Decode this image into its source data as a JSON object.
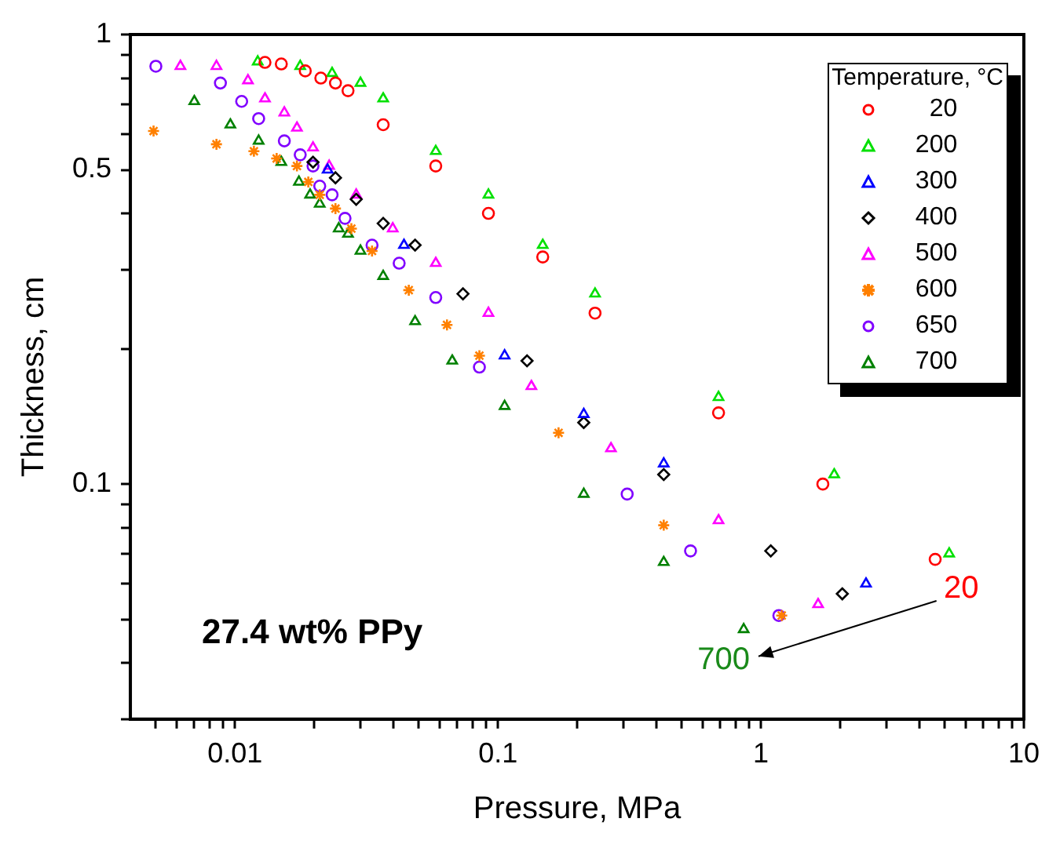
{
  "chart_data": {
    "type": "scatter",
    "xlabel": "Pressure, MPa",
    "ylabel": "Thickness, cm",
    "legend_title": "Temperature, °C",
    "legend": "top right",
    "log": "xy",
    "grid": false,
    "xlim": [
      0.004,
      10
    ],
    "ylim": [
      0.03,
      1
    ],
    "xticks": [
      {
        "value": 0.005,
        "label": null
      },
      {
        "value": 0.006,
        "label": null
      },
      {
        "value": 0.007,
        "label": null
      },
      {
        "value": 0.008,
        "label": null
      },
      {
        "value": 0.009,
        "label": null
      },
      0.01,
      {
        "value": 0.02,
        "label": null
      },
      {
        "value": 0.03,
        "label": null
      },
      {
        "value": 0.04,
        "label": null
      },
      {
        "value": 0.05,
        "label": null
      },
      {
        "value": 0.06,
        "label": null
      },
      {
        "value": 0.07,
        "label": null
      },
      {
        "value": 0.08,
        "label": null
      },
      {
        "value": 0.09,
        "label": null
      },
      0.1,
      {
        "value": 0.2,
        "label": null
      },
      {
        "value": 0.3,
        "label": null
      },
      {
        "value": 0.4,
        "label": null
      },
      {
        "value": 0.5,
        "label": null
      },
      {
        "value": 0.6,
        "label": null
      },
      {
        "value": 0.7,
        "label": null
      },
      {
        "value": 0.8,
        "label": null
      },
      {
        "value": 0.9,
        "label": null
      },
      1,
      {
        "value": 2,
        "label": null
      },
      {
        "value": 3,
        "label": null
      },
      {
        "value": 4,
        "label": null
      },
      {
        "value": 5,
        "label": null
      },
      {
        "value": 6,
        "label": null
      },
      {
        "value": 7,
        "label": null
      },
      {
        "value": 8,
        "label": null
      },
      {
        "value": 9,
        "label": null
      },
      10
    ],
    "yticks": [
      {
        "value": 0.03,
        "label": null
      },
      {
        "value": 0.04,
        "label": null
      },
      {
        "value": 0.05,
        "label": null
      },
      {
        "value": 0.06,
        "label": null
      },
      {
        "value": 0.07,
        "label": null
      },
      {
        "value": 0.08,
        "label": null
      },
      {
        "value": 0.09,
        "label": null
      },
      0.1,
      {
        "value": 0.2,
        "label": null
      },
      {
        "value": 0.3,
        "label": null
      },
      {
        "value": 0.4,
        "label": null
      },
      0.5,
      {
        "value": 0.6,
        "label": null
      },
      {
        "value": 0.7,
        "label": null
      },
      {
        "value": 0.8,
        "label": null
      },
      {
        "value": 0.9,
        "label": null
      },
      1
    ],
    "annotations": [
      "27.4 wt% PPy",
      "20",
      "700"
    ],
    "series": [
      {
        "name": "20",
        "color": "#ff0000",
        "marker": "circle",
        "x": [
          0.013,
          0.015,
          0.0185,
          0.0212,
          0.0241,
          0.0269,
          0.0366,
          0.058,
          0.092,
          0.148,
          0.234,
          0.69,
          1.72,
          4.6
        ],
        "values": [
          0.867,
          0.86,
          0.83,
          0.8,
          0.78,
          0.75,
          0.63,
          0.51,
          0.4,
          0.32,
          0.24,
          0.144,
          0.1,
          0.068
        ]
      },
      {
        "name": "200",
        "color": "#00e000",
        "marker": "triangle",
        "x": [
          0.0122,
          0.0177,
          0.0234,
          0.03,
          0.0366,
          0.058,
          0.092,
          0.148,
          0.234,
          0.69,
          1.9,
          5.2
        ],
        "values": [
          0.87,
          0.85,
          0.82,
          0.78,
          0.72,
          0.55,
          0.44,
          0.34,
          0.265,
          0.156,
          0.105,
          0.07
        ]
      },
      {
        "name": "300",
        "color": "#0000ff",
        "marker": "triangle",
        "x": [
          0.0225,
          0.0439,
          0.106,
          0.212,
          0.427,
          2.51
        ],
        "values": [
          0.5,
          0.34,
          0.193,
          0.143,
          0.111,
          0.06
        ]
      },
      {
        "name": "400",
        "color": "#000000",
        "marker": "diamond",
        "x": [
          0.0198,
          0.0241,
          0.0289,
          0.0366,
          0.0484,
          0.0736,
          0.129,
          0.212,
          0.427,
          1.09,
          2.04
        ],
        "values": [
          0.52,
          0.48,
          0.43,
          0.38,
          0.34,
          0.265,
          0.188,
          0.137,
          0.105,
          0.071,
          0.057
        ]
      },
      {
        "name": "500",
        "color": "#ff00ff",
        "marker": "triangle",
        "x": [
          0.0062,
          0.0085,
          0.0112,
          0.013,
          0.0154,
          0.0172,
          0.0198,
          0.0228,
          0.0289,
          0.0398,
          0.058,
          0.092,
          0.134,
          0.269,
          0.69,
          1.65
        ],
        "values": [
          0.85,
          0.85,
          0.79,
          0.72,
          0.67,
          0.62,
          0.56,
          0.51,
          0.44,
          0.37,
          0.31,
          0.24,
          0.165,
          0.12,
          0.083,
          0.054
        ]
      },
      {
        "name": "600",
        "color": "#ff8000",
        "marker": "cross",
        "x": [
          0.0049,
          0.0085,
          0.0118,
          0.0144,
          0.0172,
          0.019,
          0.021,
          0.0241,
          0.0277,
          0.0332,
          0.0458,
          0.064,
          0.085,
          0.17,
          0.427,
          1.2
        ],
        "values": [
          0.61,
          0.57,
          0.55,
          0.53,
          0.51,
          0.47,
          0.44,
          0.41,
          0.37,
          0.33,
          0.27,
          0.226,
          0.193,
          0.13,
          0.081,
          0.051
        ]
      },
      {
        "name": "650",
        "color": "#8000ff",
        "marker": "circle",
        "x": [
          0.005,
          0.0088,
          0.0106,
          0.0123,
          0.0154,
          0.0177,
          0.0198,
          0.021,
          0.0234,
          0.0262,
          0.0332,
          0.0421,
          0.058,
          0.085,
          0.31,
          0.54,
          1.17
        ],
        "values": [
          0.85,
          0.78,
          0.71,
          0.65,
          0.58,
          0.54,
          0.51,
          0.46,
          0.44,
          0.39,
          0.34,
          0.31,
          0.26,
          0.182,
          0.095,
          0.071,
          0.051
        ]
      },
      {
        "name": "700",
        "color": "#008000",
        "marker": "triangle",
        "x": [
          0.007,
          0.0096,
          0.0123,
          0.015,
          0.0175,
          0.0193,
          0.021,
          0.0248,
          0.0269,
          0.03,
          0.0366,
          0.0484,
          0.067,
          0.106,
          0.212,
          0.427,
          0.86
        ],
        "values": [
          0.71,
          0.63,
          0.58,
          0.52,
          0.47,
          0.44,
          0.42,
          0.37,
          0.36,
          0.33,
          0.29,
          0.23,
          0.188,
          0.149,
          0.095,
          0.067,
          0.0475
        ]
      }
    ]
  }
}
